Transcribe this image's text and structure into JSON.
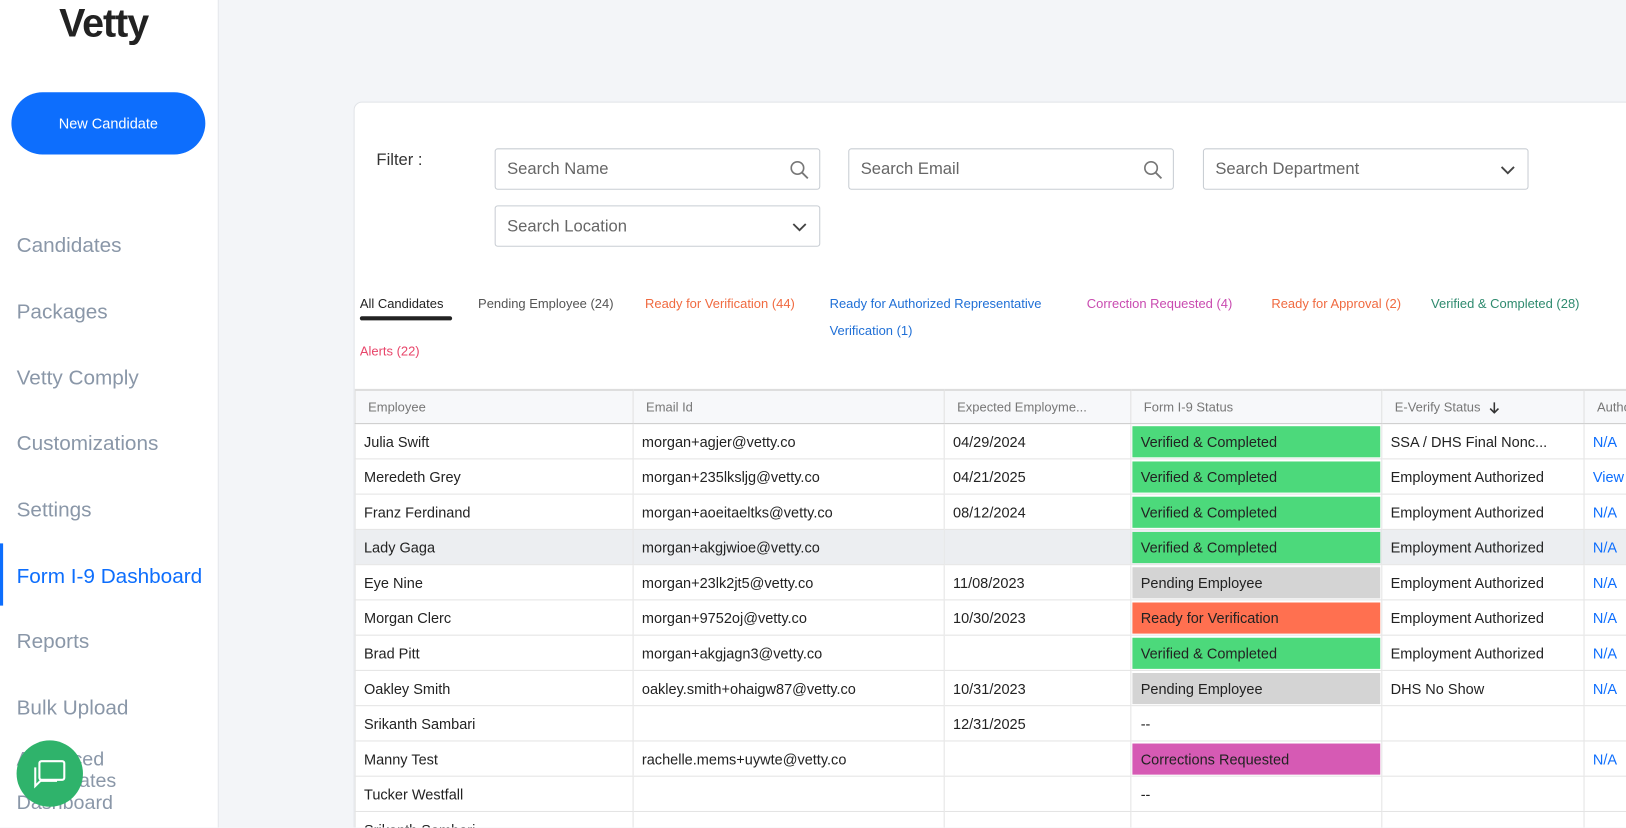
{
  "sidebar": {
    "logo": "Vetty",
    "new_candidate": "New Candidate",
    "nav": [
      "Candidates",
      "Packages",
      "Vetty Comply",
      "Customizations",
      "Settings",
      "Form I-9 Dashboard",
      "Reports",
      "Bulk Upload",
      "Advanced Candidates Dashboard"
    ],
    "active": 5
  },
  "filter": {
    "label": "Filter :",
    "search_name": "Search Name",
    "search_email": "Search Email",
    "search_department": "Search Department",
    "search_location": "Search Location"
  },
  "tabs": [
    {
      "label": "All Candidates",
      "color": "#222222"
    },
    {
      "label": "Pending Employee (24)",
      "color": "#555555"
    },
    {
      "label": "Ready for Verification (44)",
      "color": "#f06a40"
    },
    {
      "label": "Ready for Authorized Representative Verification (1)",
      "color": "#1f6fd6"
    },
    {
      "label": "Correction Requested (4)",
      "color": "#c94bb0"
    },
    {
      "label": "Ready for Approval (2)",
      "color": "#f06a40"
    },
    {
      "label": "Verified & Completed (28)",
      "color": "#2e8a6e"
    },
    {
      "label": "Alerts (22)",
      "color": "#e8456a"
    }
  ],
  "table": {
    "columns": [
      "Employee",
      "Email Id",
      "Expected Employme...",
      "Form I-9 Status",
      "E-Verify Status",
      "Authorized Representa..."
    ],
    "status_colors": {
      "Verified & Completed": "#4cd97b",
      "Pending Employee": "#d4d4d4",
      "Ready for Verification": "#ff7050",
      "Corrections Requested": "#d65ab4"
    },
    "rows": [
      [
        "Julia Swift",
        "morgan+agjer@vetty.co",
        "04/29/2024",
        "Verified & Completed",
        "SSA / DHS Final Nonc...",
        "N/A"
      ],
      [
        "Meredeth Grey",
        "morgan+235lksljg@vetty.co",
        "04/21/2025",
        "Verified & Completed",
        "Employment Authorized",
        "View Details"
      ],
      [
        "Franz Ferdinand",
        "morgan+aoeitaeltks@vetty.co",
        "08/12/2024",
        "Verified & Completed",
        "Employment Authorized",
        "N/A"
      ],
      [
        "Lady Gaga",
        "morgan+akgjwioe@vetty.co",
        null,
        "Verified & Completed",
        "Employment Authorized",
        "N/A"
      ],
      [
        "Eye Nine",
        "morgan+23lk2jt5@vetty.co",
        "11/08/2023",
        "Pending Employee",
        "Employment Authorized",
        "N/A"
      ],
      [
        "Morgan Clerc",
        "morgan+9752oj@vetty.co",
        "10/30/2023",
        "Ready for Verification",
        "Employment Authorized",
        "N/A"
      ],
      [
        "Brad Pitt",
        "morgan+akgjagn3@vetty.co",
        null,
        "Verified & Completed",
        "Employment Authorized",
        "N/A"
      ],
      [
        "Oakley Smith",
        "oakley.smith+ohaigw87@vetty.co",
        "10/31/2023",
        "Pending Employee",
        "DHS No Show",
        "N/A"
      ],
      [
        "Srikanth Sambari",
        null,
        "12/31/2025",
        "--",
        null,
        null
      ],
      [
        "Manny Test",
        "rachelle.mems+uywte@vetty.co",
        null,
        "Corrections Requested",
        null,
        "N/A"
      ],
      [
        "Tucker Westfall",
        null,
        null,
        "--",
        null,
        null
      ],
      [
        "Srikanth Sambari",
        null,
        null,
        "--",
        null,
        null
      ]
    ],
    "highlight_row": 3
  }
}
